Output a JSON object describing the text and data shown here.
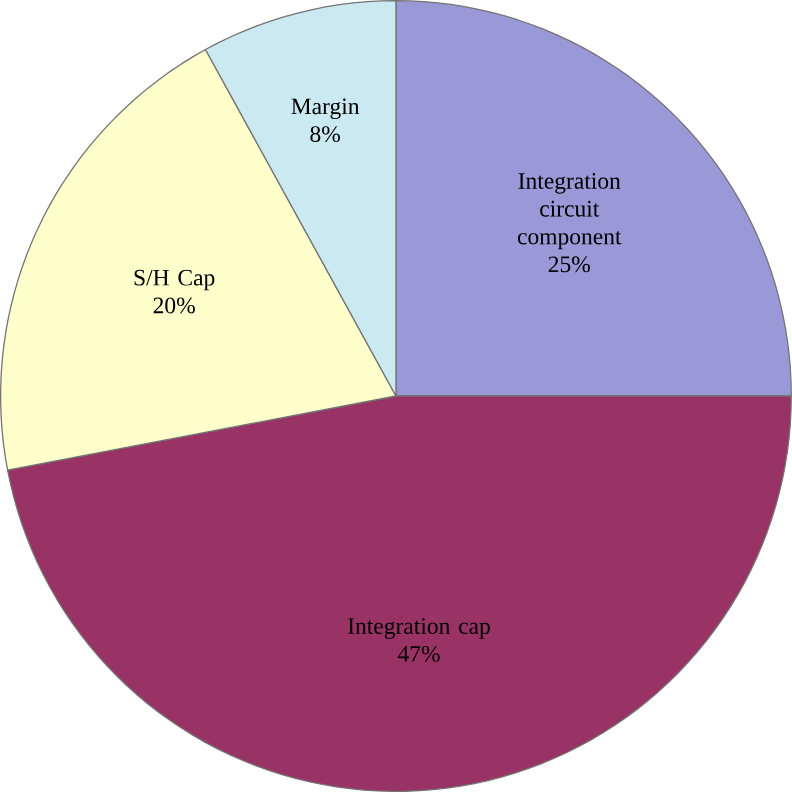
{
  "chart_data": {
    "type": "pie",
    "categories": [
      "Integration circuit component",
      "Integration cap",
      "S/H Cap",
      "Margin"
    ],
    "values": [
      25,
      47,
      20,
      8
    ],
    "value_labels": [
      "25%",
      "47%",
      "20%",
      "8%"
    ],
    "colors": [
      "#9999d8",
      "#993366",
      "#ffffcc",
      "#cbe9f0"
    ]
  }
}
